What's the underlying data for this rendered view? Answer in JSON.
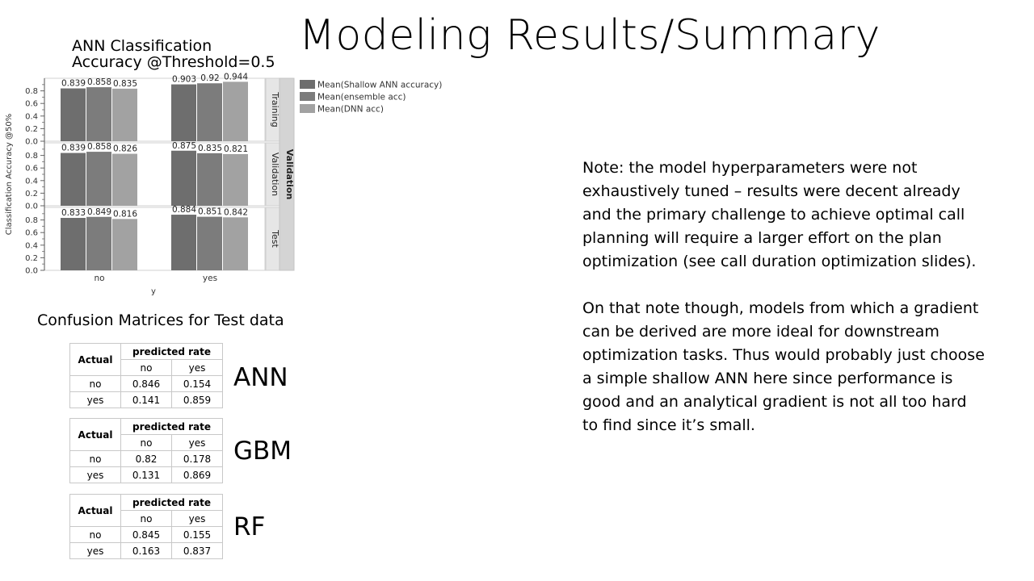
{
  "slide": {
    "title": "Modeling Results/Summary"
  },
  "chart_title_lines": [
    "ANN Classification",
    "Accuracy @Threshold=0.5"
  ],
  "chart_data": {
    "type": "bar",
    "xlabel": "y",
    "ylabel": "Classification Accuracy @50%",
    "categories": [
      "no",
      "yes"
    ],
    "panel_group_label": "Validation",
    "ylim": [
      0,
      1.0
    ],
    "y_ticks": [
      "0.0",
      "0.2",
      "0.4",
      "0.6",
      "0.8"
    ],
    "colors": [
      "#6e6e6e",
      "#7c7c7c",
      "#a2a2a2"
    ],
    "legend_position": "top-right",
    "panels": [
      {
        "name": "Training",
        "series": [
          {
            "name": "Mean(Shallow ANN accuracy)",
            "values": [
              0.839,
              0.903
            ]
          },
          {
            "name": "Mean(ensemble acc)",
            "values": [
              0.858,
              0.92
            ]
          },
          {
            "name": "Mean(DNN acc)",
            "values": [
              0.835,
              0.944
            ]
          }
        ]
      },
      {
        "name": "Validation",
        "series": [
          {
            "name": "Mean(Shallow ANN accuracy)",
            "values": [
              0.839,
              0.875
            ]
          },
          {
            "name": "Mean(ensemble acc)",
            "values": [
              0.858,
              0.835
            ]
          },
          {
            "name": "Mean(DNN acc)",
            "values": [
              0.826,
              0.821
            ]
          }
        ]
      },
      {
        "name": "Test",
        "series": [
          {
            "name": "Mean(Shallow ANN accuracy)",
            "values": [
              0.833,
              0.884
            ]
          },
          {
            "name": "Mean(ensemble acc)",
            "values": [
              0.849,
              0.851
            ]
          },
          {
            "name": "Mean(DNN acc)",
            "values": [
              0.816,
              0.842
            ]
          }
        ]
      }
    ]
  },
  "confusion": {
    "heading": "Confusion Matrices for Test data",
    "actual_label": "Actual",
    "predicted_label": "predicted rate",
    "columns": [
      "no",
      "yes"
    ],
    "rows": [
      "no",
      "yes"
    ],
    "matrices": [
      {
        "model": "ANN",
        "values": [
          [
            "0.846",
            "0.154"
          ],
          [
            "0.141",
            "0.859"
          ]
        ]
      },
      {
        "model": "GBM",
        "values": [
          [
            "0.82",
            "0.178"
          ],
          [
            "0.131",
            "0.869"
          ]
        ]
      },
      {
        "model": "RF",
        "values": [
          [
            "0.845",
            "0.155"
          ],
          [
            "0.163",
            "0.837"
          ]
        ]
      }
    ]
  },
  "notes": [
    "Note: the model hyperparameters were not exhaustively tuned – results were decent already and the primary challenge to achieve optimal call planning will require a larger effort on the plan optimization (see call duration optimization slides).",
    "On that note though, models from which a gradient can be derived are more ideal for downstream optimization tasks.  Thus would probably just choose a simple shallow ANN here since performance is good and an analytical gradient is not all too hard to find since it’s small."
  ]
}
